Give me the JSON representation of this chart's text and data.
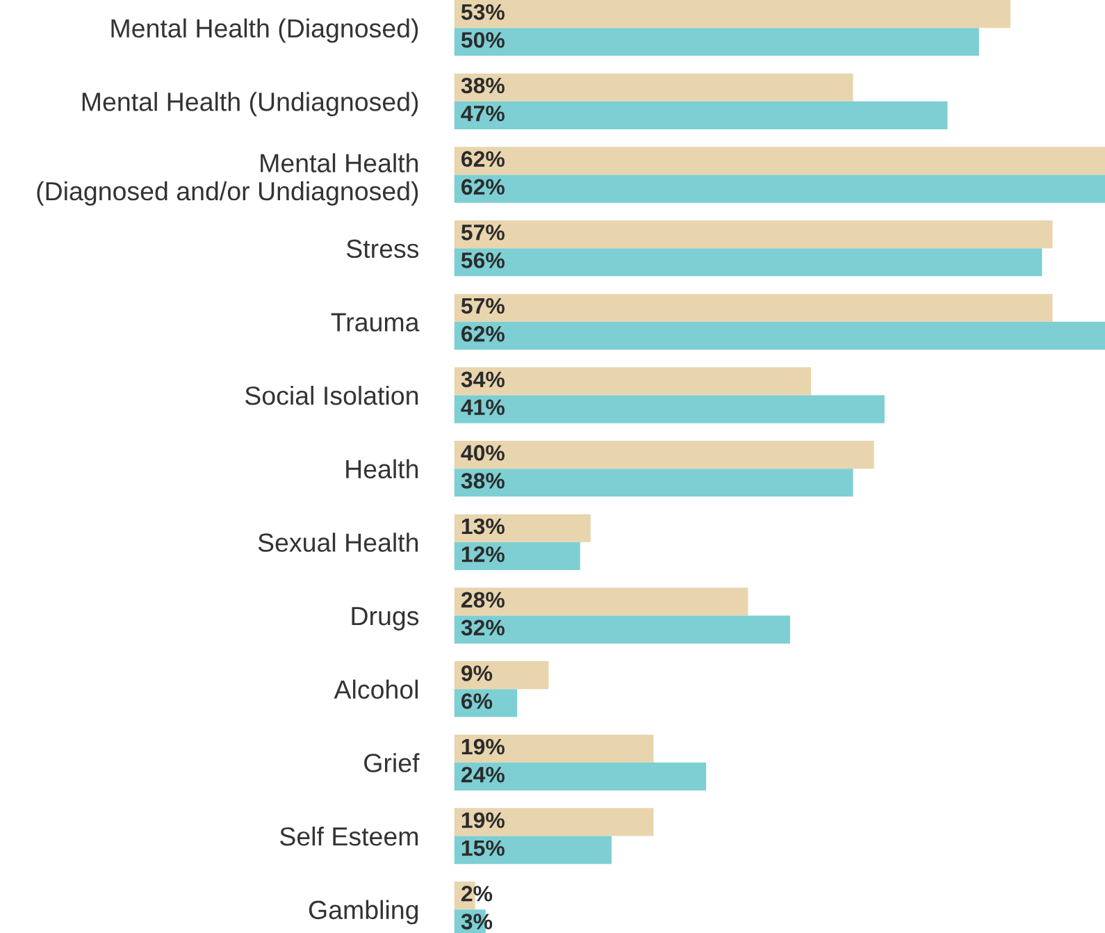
{
  "chart_data": {
    "type": "bar",
    "orientation": "horizontal",
    "categories": [
      "Mental Health (Diagnosed)",
      "Mental Health (Undiagnosed)",
      "Mental Health\n(Diagnosed and/or Undiagnosed)",
      "Stress",
      "Trauma",
      "Social Isolation",
      "Health",
      "Sexual Health",
      "Drugs",
      "Alcohol",
      "Grief",
      "Self Esteem",
      "Gambling"
    ],
    "series": [
      {
        "color": "#e8d5ae",
        "values": [
          53,
          38,
          62,
          57,
          57,
          34,
          40,
          13,
          28,
          9,
          19,
          19,
          2
        ],
        "value_labels": [
          "53%",
          "38%",
          "62%",
          "57%",
          "57%",
          "34%",
          "40%",
          "13%",
          "28%",
          "9%",
          "19%",
          "19%",
          "2%"
        ]
      },
      {
        "color": "#7dcfd3",
        "values": [
          50,
          47,
          62,
          56,
          62,
          41,
          38,
          12,
          32,
          6,
          24,
          15,
          3
        ],
        "value_labels": [
          "50%",
          "47%",
          "62%",
          "56%",
          "62%",
          "41%",
          "38%",
          "12%",
          "32%",
          "6%",
          "24%",
          "15%",
          "3%"
        ]
      }
    ]
  }
}
